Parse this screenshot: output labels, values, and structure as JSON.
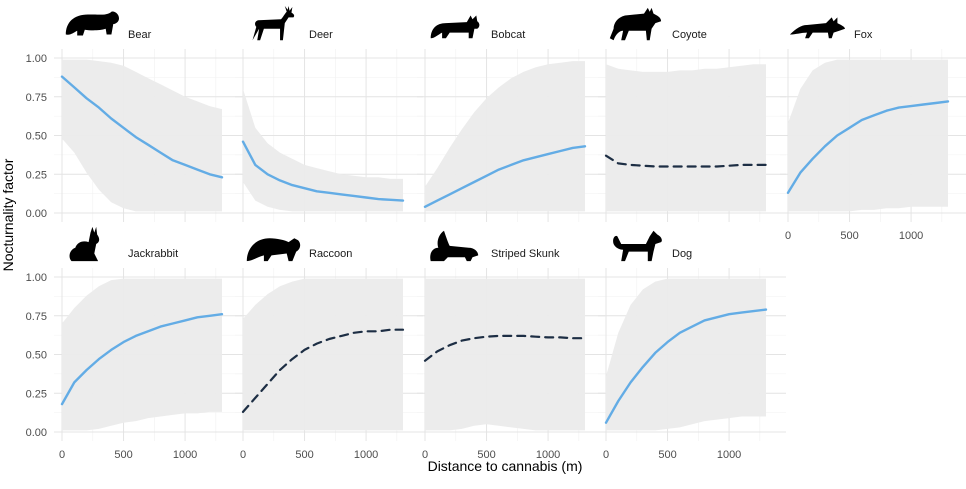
{
  "labels": {
    "ylabel": "Nocturnality factor",
    "xlabel": "Distance to cannabis (m)"
  },
  "chart_data": {
    "type": "line",
    "xlabel": "Distance to cannabis (m)",
    "ylabel": "Nocturnality factor",
    "xlim": [
      0,
      1300
    ],
    "ylim": [
      0,
      1
    ],
    "x_ticks": [
      "0",
      "500",
      "1000"
    ],
    "y_ticks": [
      "0.00",
      "0.25",
      "0.50",
      "0.75",
      "1.00"
    ],
    "grid": true,
    "line_color": "#63ace5",
    "dashed_color": "#1d2e44",
    "band_color": "#ebebeb",
    "x": [
      0,
      100,
      200,
      300,
      400,
      500,
      600,
      700,
      800,
      900,
      1000,
      1100,
      1200,
      1300
    ],
    "panels": [
      {
        "name": "Bear",
        "icon": "bear-icon",
        "style": "solid",
        "y": [
          0.88,
          0.81,
          0.74,
          0.68,
          0.61,
          0.55,
          0.49,
          0.44,
          0.39,
          0.34,
          0.31,
          0.28,
          0.25,
          0.23
        ],
        "lower": [
          0.48,
          0.39,
          0.26,
          0.15,
          0.07,
          0.03,
          0.01,
          0.01,
          0.01,
          0.01,
          0.01,
          0.01,
          0.01,
          0.01
        ],
        "upper": [
          0.99,
          0.99,
          0.99,
          0.98,
          0.97,
          0.95,
          0.91,
          0.87,
          0.83,
          0.79,
          0.75,
          0.72,
          0.69,
          0.67
        ]
      },
      {
        "name": "Deer",
        "icon": "deer-icon",
        "style": "solid",
        "y": [
          0.46,
          0.31,
          0.25,
          0.21,
          0.18,
          0.16,
          0.14,
          0.13,
          0.12,
          0.11,
          0.1,
          0.09,
          0.085,
          0.08
        ],
        "lower": [
          0.2,
          0.08,
          0.04,
          0.02,
          0.01,
          0.01,
          0.01,
          0.01,
          0.01,
          0.01,
          0.01,
          0.01,
          0.01,
          0.01
        ],
        "upper": [
          0.8,
          0.55,
          0.45,
          0.39,
          0.35,
          0.31,
          0.29,
          0.27,
          0.25,
          0.24,
          0.23,
          0.23,
          0.22,
          0.22
        ]
      },
      {
        "name": "Bobcat",
        "icon": "bobcat-icon",
        "style": "solid",
        "y": [
          0.04,
          0.08,
          0.12,
          0.16,
          0.2,
          0.24,
          0.28,
          0.31,
          0.34,
          0.36,
          0.38,
          0.4,
          0.42,
          0.43
        ],
        "lower": [
          0.01,
          0.01,
          0.01,
          0.01,
          0.01,
          0.01,
          0.01,
          0.01,
          0.01,
          0.01,
          0.01,
          0.01,
          0.01,
          0.01
        ],
        "upper": [
          0.17,
          0.29,
          0.42,
          0.54,
          0.65,
          0.74,
          0.81,
          0.87,
          0.91,
          0.94,
          0.96,
          0.97,
          0.98,
          0.98
        ]
      },
      {
        "name": "Coyote",
        "icon": "coyote-icon",
        "style": "dashed",
        "y": [
          0.37,
          0.32,
          0.31,
          0.305,
          0.3,
          0.3,
          0.3,
          0.3,
          0.3,
          0.3,
          0.305,
          0.31,
          0.31,
          0.31
        ],
        "lower": [
          0.01,
          0.01,
          0.01,
          0.01,
          0.01,
          0.01,
          0.01,
          0.01,
          0.01,
          0.01,
          0.01,
          0.01,
          0.01,
          0.01
        ],
        "upper": [
          0.96,
          0.93,
          0.92,
          0.91,
          0.91,
          0.91,
          0.92,
          0.92,
          0.93,
          0.93,
          0.94,
          0.95,
          0.96,
          0.96
        ]
      },
      {
        "name": "Fox",
        "icon": "fox-icon",
        "style": "solid",
        "y": [
          0.13,
          0.26,
          0.35,
          0.43,
          0.5,
          0.55,
          0.6,
          0.63,
          0.66,
          0.68,
          0.69,
          0.7,
          0.71,
          0.72
        ],
        "lower": [
          0.01,
          0.01,
          0.01,
          0.01,
          0.01,
          0.01,
          0.02,
          0.02,
          0.03,
          0.03,
          0.04,
          0.04,
          0.04,
          0.04
        ],
        "upper": [
          0.58,
          0.8,
          0.92,
          0.97,
          0.99,
          0.99,
          0.99,
          0.99,
          0.99,
          0.99,
          0.99,
          0.99,
          0.99,
          0.99
        ]
      },
      {
        "name": "Jackrabbit",
        "icon": "jackrabbit-icon",
        "style": "solid",
        "y": [
          0.18,
          0.32,
          0.4,
          0.47,
          0.53,
          0.58,
          0.62,
          0.65,
          0.68,
          0.7,
          0.72,
          0.74,
          0.75,
          0.76
        ],
        "lower": [
          0.01,
          0.01,
          0.01,
          0.02,
          0.04,
          0.06,
          0.07,
          0.09,
          0.1,
          0.11,
          0.12,
          0.12,
          0.13,
          0.13
        ],
        "upper": [
          0.7,
          0.8,
          0.88,
          0.94,
          0.98,
          0.99,
          0.99,
          0.99,
          0.99,
          0.99,
          0.99,
          0.99,
          0.99,
          0.99
        ]
      },
      {
        "name": "Raccoon",
        "icon": "raccoon-icon",
        "style": "dashed",
        "y": [
          0.13,
          0.22,
          0.31,
          0.4,
          0.47,
          0.53,
          0.57,
          0.6,
          0.62,
          0.64,
          0.65,
          0.65,
          0.66,
          0.66
        ],
        "lower": [
          0.01,
          0.01,
          0.01,
          0.01,
          0.01,
          0.01,
          0.01,
          0.01,
          0.01,
          0.01,
          0.01,
          0.01,
          0.01,
          0.01
        ],
        "upper": [
          0.73,
          0.82,
          0.89,
          0.94,
          0.97,
          0.99,
          0.99,
          0.99,
          0.99,
          0.99,
          0.99,
          0.99,
          0.99,
          0.99
        ]
      },
      {
        "name": "Striped Skunk",
        "icon": "skunk-icon",
        "style": "dashed",
        "y": [
          0.46,
          0.52,
          0.56,
          0.59,
          0.605,
          0.615,
          0.62,
          0.62,
          0.62,
          0.615,
          0.61,
          0.61,
          0.605,
          0.605
        ],
        "lower": [
          0.01,
          0.01,
          0.01,
          0.02,
          0.04,
          0.05,
          0.04,
          0.03,
          0.02,
          0.01,
          0.01,
          0.01,
          0.01,
          0.01
        ],
        "upper": [
          0.99,
          0.99,
          0.99,
          0.99,
          0.99,
          0.99,
          0.99,
          0.99,
          0.99,
          0.99,
          0.99,
          0.99,
          0.99,
          0.99
        ]
      },
      {
        "name": "Dog",
        "icon": "dog-icon",
        "style": "solid",
        "y": [
          0.06,
          0.2,
          0.32,
          0.42,
          0.51,
          0.58,
          0.64,
          0.68,
          0.72,
          0.74,
          0.76,
          0.77,
          0.78,
          0.79
        ],
        "lower": [
          0.01,
          0.01,
          0.01,
          0.01,
          0.01,
          0.02,
          0.03,
          0.05,
          0.07,
          0.08,
          0.09,
          0.1,
          0.1,
          0.1
        ],
        "upper": [
          0.36,
          0.64,
          0.82,
          0.92,
          0.97,
          0.99,
          0.99,
          0.99,
          0.99,
          0.99,
          0.99,
          0.99,
          0.99,
          0.99
        ]
      }
    ]
  }
}
